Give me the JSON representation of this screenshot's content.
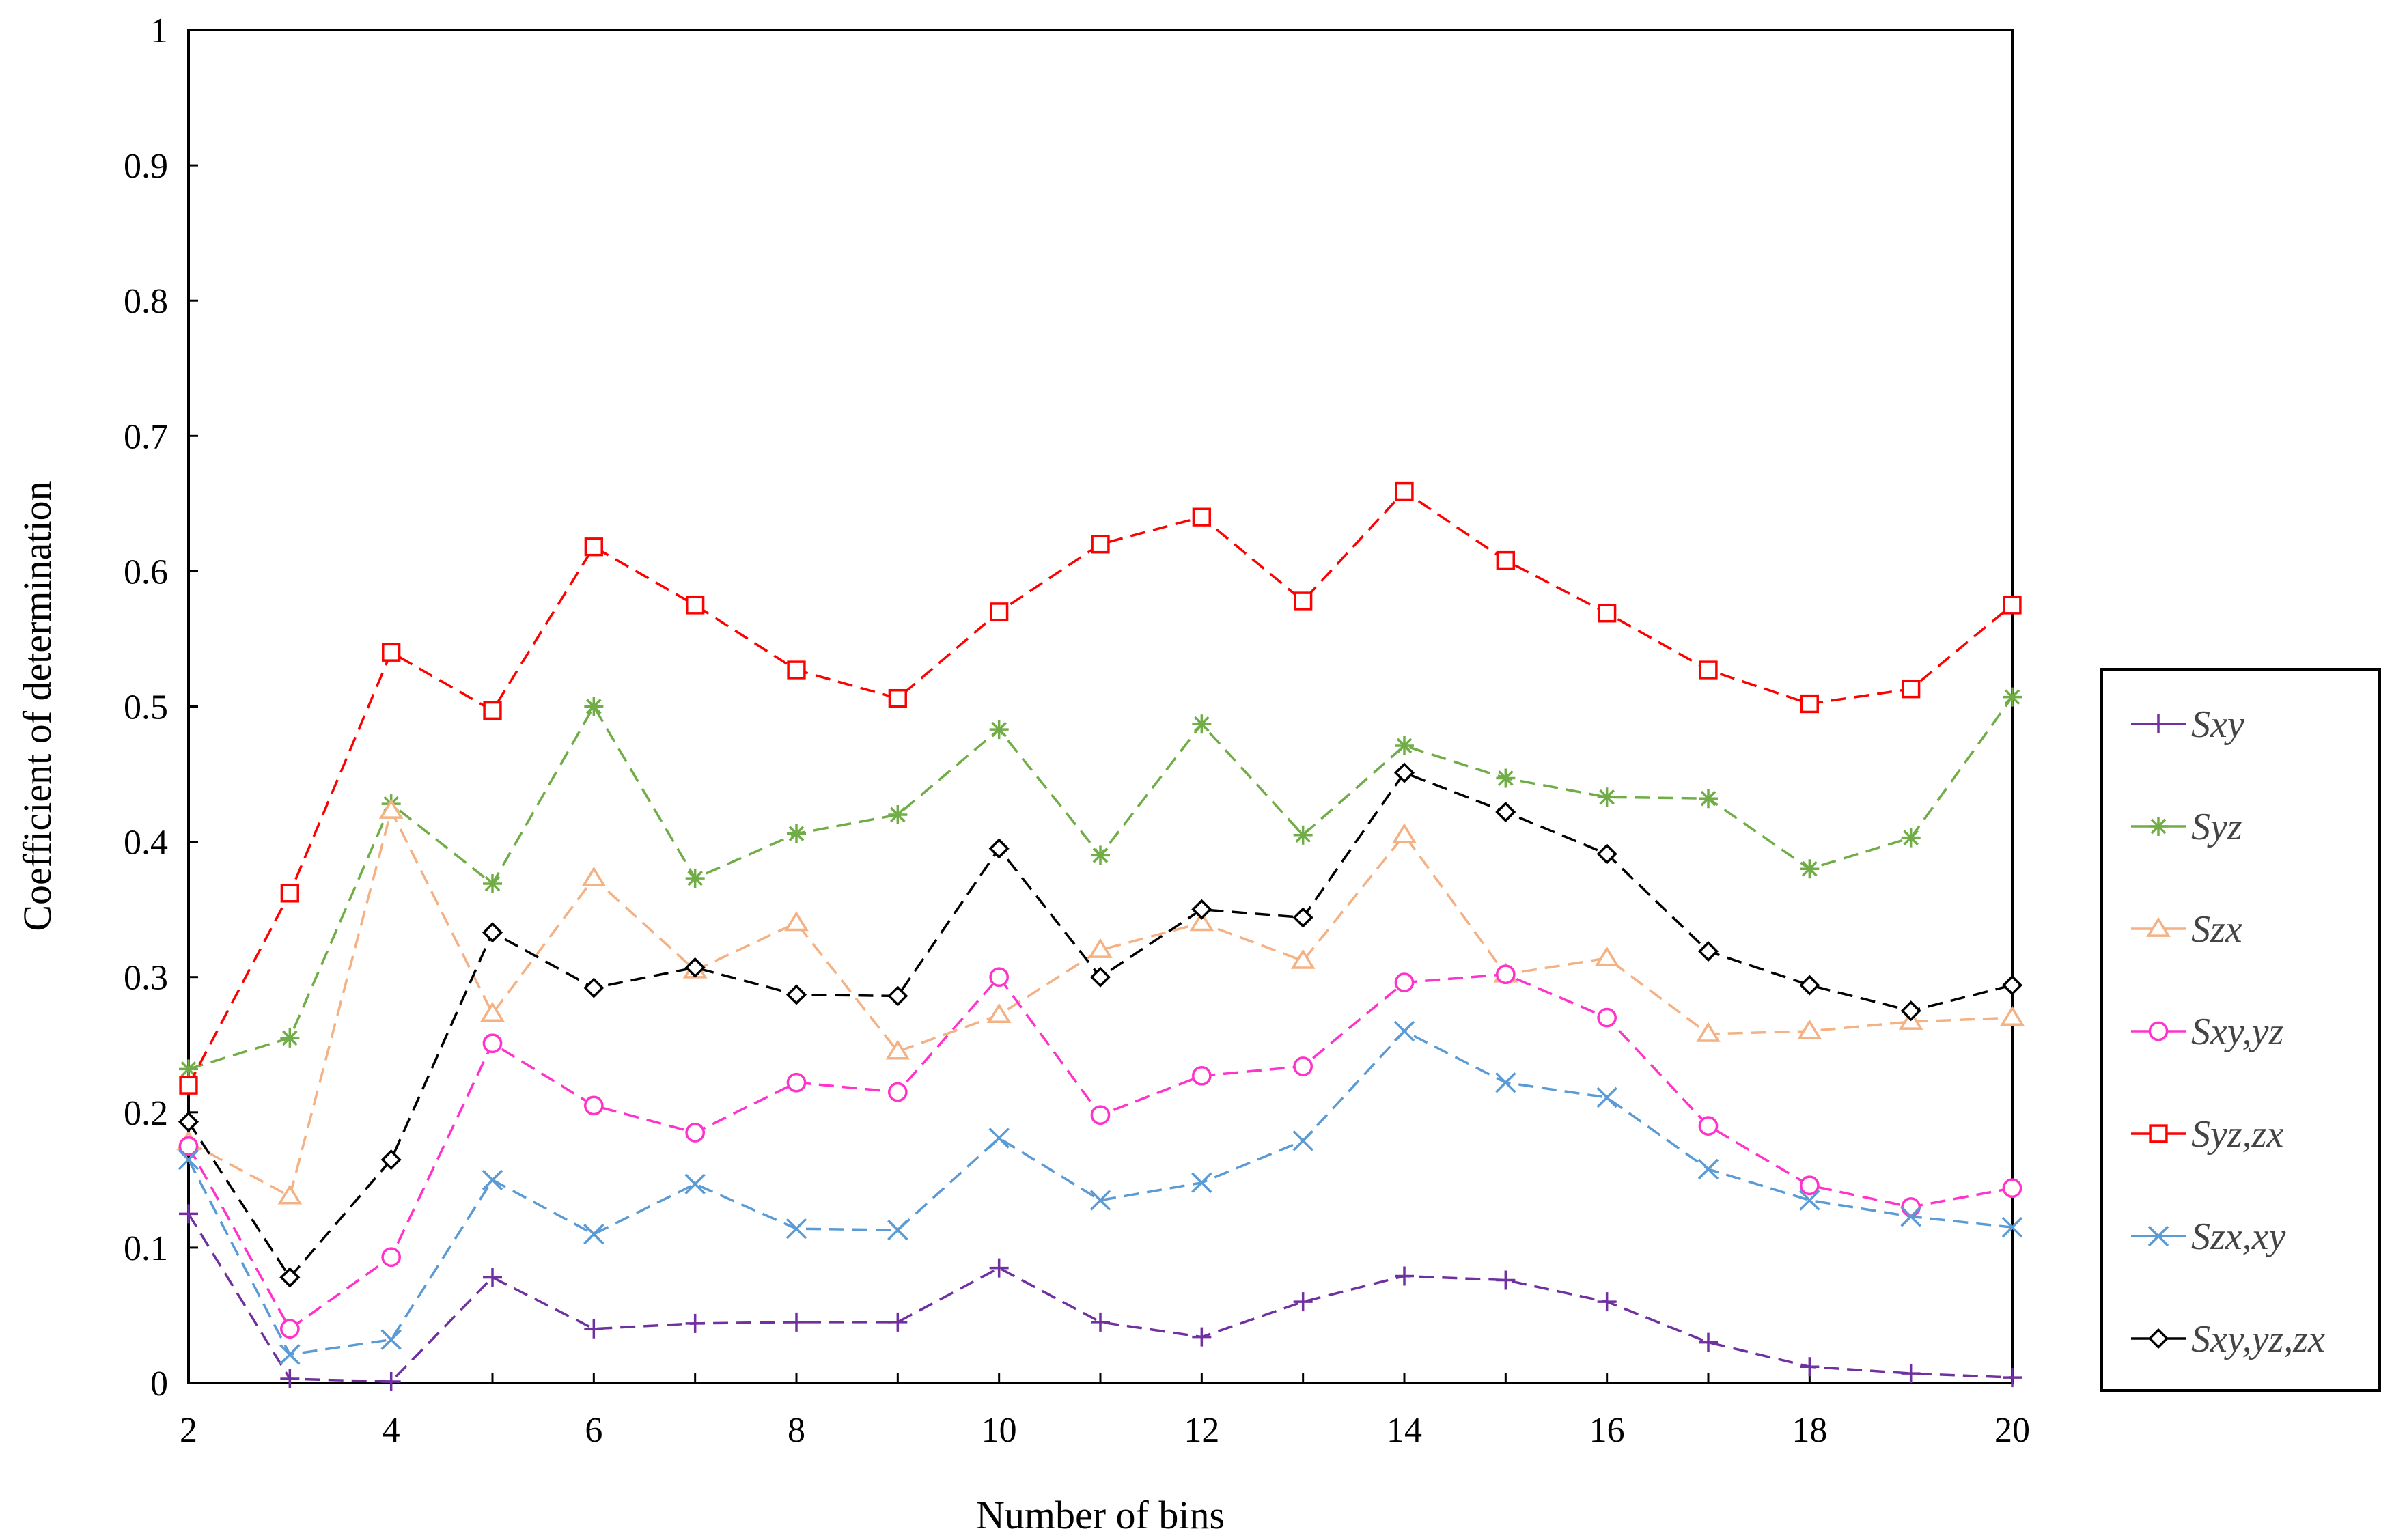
{
  "chart_data": {
    "type": "line",
    "title": "",
    "xlabel": "Number of bins",
    "ylabel": "Coefficient of determination",
    "xlim": [
      2,
      20
    ],
    "ylim": [
      0,
      1
    ],
    "x_ticks": [
      "2",
      "4",
      "6",
      "8",
      "10",
      "12",
      "14",
      "16",
      "18",
      "20"
    ],
    "y_ticks": [
      "0",
      "0.1",
      "0.2",
      "0.3",
      "0.4",
      "0.5",
      "0.6",
      "0.7",
      "0.8",
      "0.9",
      "1"
    ],
    "grid": false,
    "legend_position": "right",
    "x": [
      2,
      3,
      4,
      5,
      6,
      7,
      8,
      9,
      10,
      11,
      12,
      13,
      14,
      15,
      16,
      17,
      18,
      19,
      20
    ],
    "series": [
      {
        "name": "Sxy",
        "color": "#7030a0",
        "marker": "plus",
        "values": [
          0.125,
          0.003,
          0.001,
          0.078,
          0.04,
          0.044,
          0.045,
          0.045,
          0.085,
          0.045,
          0.034,
          0.06,
          0.079,
          0.076,
          0.06,
          0.03,
          0.012,
          0.007,
          0.004
        ]
      },
      {
        "name": "Syz",
        "color": "#70ad47",
        "marker": "asterisk",
        "values": [
          0.232,
          0.255,
          0.428,
          0.369,
          0.5,
          0.373,
          0.406,
          0.42,
          0.483,
          0.39,
          0.487,
          0.405,
          0.471,
          0.447,
          0.433,
          0.432,
          0.38,
          0.403,
          0.507
        ]
      },
      {
        "name": "Szx",
        "color": "#f4b183",
        "marker": "triangle",
        "values": [
          0.178,
          0.138,
          0.423,
          0.273,
          0.373,
          0.305,
          0.34,
          0.245,
          0.272,
          0.32,
          0.34,
          0.312,
          0.405,
          0.302,
          0.314,
          0.258,
          0.26,
          0.267,
          0.27
        ]
      },
      {
        "name": "Sxy,yz",
        "color": "#ff33cc",
        "marker": "circle",
        "values": [
          0.175,
          0.04,
          0.093,
          0.251,
          0.205,
          0.185,
          0.222,
          0.215,
          0.3,
          0.198,
          0.227,
          0.234,
          0.296,
          0.302,
          0.27,
          0.19,
          0.146,
          0.13,
          0.144
        ]
      },
      {
        "name": "Syz,zx",
        "color": "#ff0000",
        "marker": "square",
        "values": [
          0.22,
          0.362,
          0.54,
          0.497,
          0.618,
          0.575,
          0.527,
          0.506,
          0.57,
          0.62,
          0.64,
          0.578,
          0.659,
          0.608,
          0.569,
          0.527,
          0.502,
          0.513,
          0.575
        ]
      },
      {
        "name": "Szx,xy",
        "color": "#5b9bd5",
        "marker": "x",
        "values": [
          0.165,
          0.021,
          0.032,
          0.15,
          0.11,
          0.147,
          0.114,
          0.113,
          0.181,
          0.135,
          0.148,
          0.179,
          0.26,
          0.222,
          0.211,
          0.158,
          0.135,
          0.123,
          0.115
        ]
      },
      {
        "name": "Sxy,yz,zx",
        "color": "#000000",
        "marker": "diamond",
        "values": [
          0.193,
          0.078,
          0.165,
          0.333,
          0.292,
          0.307,
          0.287,
          0.286,
          0.395,
          0.3,
          0.35,
          0.344,
          0.451,
          0.422,
          0.391,
          0.319,
          0.294,
          0.275,
          0.294
        ]
      }
    ]
  }
}
